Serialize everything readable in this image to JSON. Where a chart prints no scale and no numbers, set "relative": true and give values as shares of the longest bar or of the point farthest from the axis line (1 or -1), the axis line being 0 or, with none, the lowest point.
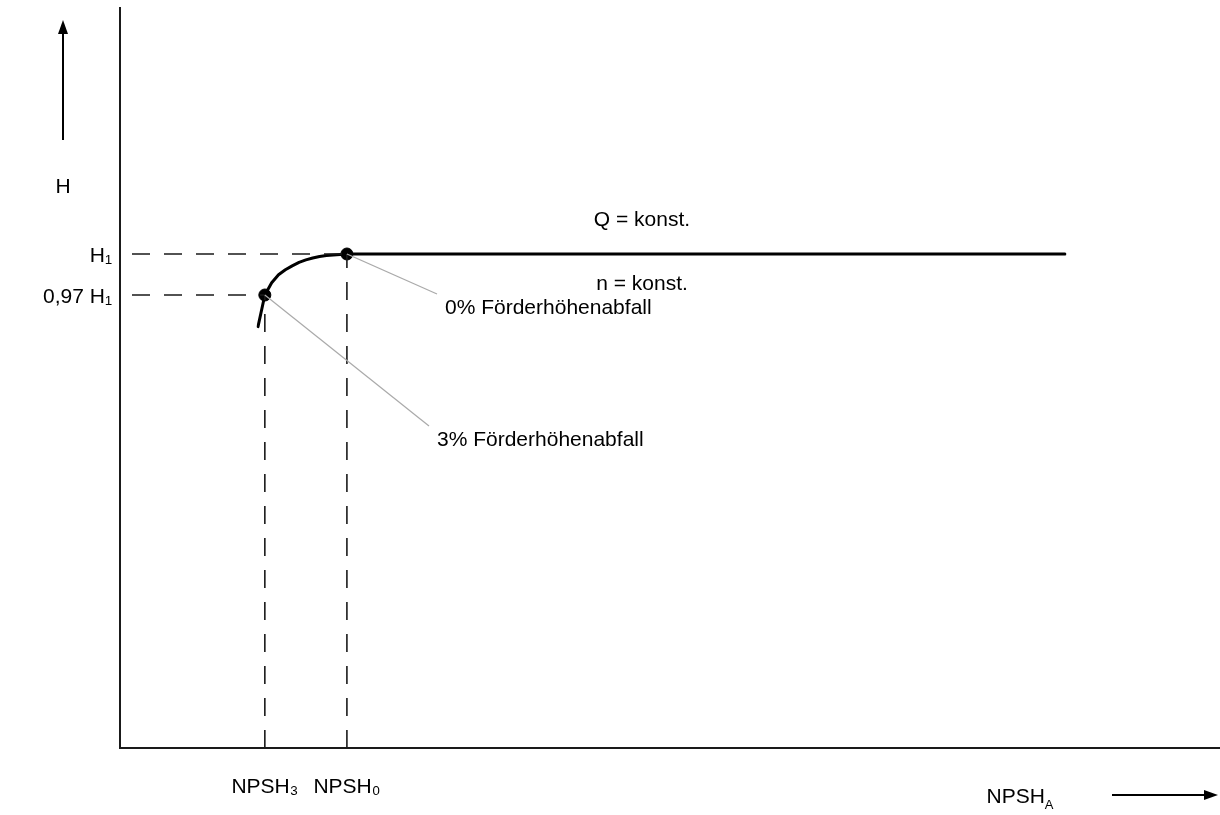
{
  "chart_data": {
    "type": "line",
    "relative": true,
    "xlabel": "NPSH$_{A}$",
    "grid": "x",
    "legend": false,
    "categories": [
      null,
      "NPSH₃",
      null,
      null,
      null,
      null,
      null,
      null,
      null,
      null,
      null,
      null,
      null,
      "NPSH₀",
      null,
      null,
      null,
      null,
      null,
      null,
      null,
      null,
      null,
      null,
      null,
      null,
      null,
      null,
      null,
      null,
      null,
      null,
      null,
      null,
      null,
      null,
      null,
      null,
      null,
      null,
      null,
      null,
      null,
      null,
      null,
      null,
      null,
      null,
      null,
      null,
      null,
      null,
      null,
      null,
      null,
      null,
      null,
      null,
      null,
      null,
      null,
      null,
      null,
      null,
      null,
      null,
      null,
      null,
      null,
      null,
      null,
      null,
      null,
      null,
      null,
      null,
      null,
      null,
      null,
      null,
      null,
      null,
      null,
      null,
      null,
      null,
      null,
      null,
      null,
      null,
      null,
      null,
      null,
      null,
      null,
      null,
      null,
      null,
      null,
      null,
      null,
      null,
      null,
      null,
      null,
      null,
      null,
      null,
      null,
      null,
      null,
      null,
      null,
      null,
      null,
      null,
      null,
      null,
      null
    ],
    "series": [
      {
        "color": "#000000",
        "marker": "none",
        "values": [
          0.853,
          0.917,
          0.942,
          0.958,
          0.968,
          0.976,
          0.983,
          0.988,
          0.992,
          0.995,
          0.997,
          0.998,
          0.999,
          1,
          1,
          1,
          1,
          1,
          1,
          1,
          1,
          1,
          1,
          1,
          1,
          1,
          1,
          1,
          1,
          1,
          1,
          1,
          1,
          1,
          1,
          1,
          1,
          1,
          1,
          1,
          1,
          1,
          1,
          1,
          1,
          1,
          1,
          1,
          1,
          1,
          1,
          1,
          1,
          1,
          1,
          1,
          1,
          1,
          1,
          1,
          1,
          1,
          1,
          1,
          1,
          1,
          1,
          1,
          1,
          1,
          1,
          1,
          1,
          1,
          1,
          1,
          1,
          1,
          1,
          1,
          1,
          1,
          1,
          1,
          1,
          1,
          1,
          1,
          1,
          1,
          1,
          1,
          1,
          1,
          1,
          1,
          1,
          1,
          1,
          1,
          1,
          1,
          1,
          1,
          1,
          1,
          1,
          1,
          1,
          1,
          1,
          1,
          1,
          1,
          1,
          1,
          1,
          1,
          1
        ]
      },
      {
        "type": "scatter",
        "color": "#000000",
        "marker": "circle",
        "values": [
          null,
          0.917,
          null,
          null,
          null,
          null,
          null,
          null,
          null,
          null,
          null,
          null,
          null,
          1,
          null,
          null,
          null,
          null,
          null,
          null,
          null,
          null,
          null,
          null,
          null,
          null,
          null,
          null,
          null,
          null,
          null,
          null,
          null,
          null,
          null,
          null,
          null,
          null,
          null,
          null,
          null,
          null,
          null,
          null,
          null,
          null,
          null,
          null,
          null,
          null,
          null,
          null,
          null,
          null,
          null,
          null,
          null,
          null,
          null,
          null,
          null,
          null,
          null,
          null,
          null,
          null,
          null,
          null,
          null,
          null,
          null,
          null,
          null,
          null,
          null,
          null,
          null,
          null,
          null,
          null,
          null,
          null,
          null,
          null,
          null,
          null,
          null,
          null,
          null,
          null,
          null,
          null,
          null,
          null,
          null,
          null,
          null,
          null,
          null,
          null,
          null,
          null,
          null,
          null,
          null,
          null,
          null,
          null,
          null,
          null,
          null,
          null,
          null,
          null,
          null,
          null,
          null,
          null,
          null
        ]
      }
    ],
    "ref_lines": [
      {
        "axis": "y",
        "value": 1,
        "label": "H₁",
        "line_style": "dashed"
      },
      {
        "axis": "y",
        "value": 0.917,
        "label": "0,97 H₁",
        "line_style": "dashed"
      }
    ],
    "annotations": [
      "H",
      "Q = konst.",
      "n = konst.",
      "0% Förderhöhenabfall",
      "3% Förderhöhenabfall"
    ]
  }
}
